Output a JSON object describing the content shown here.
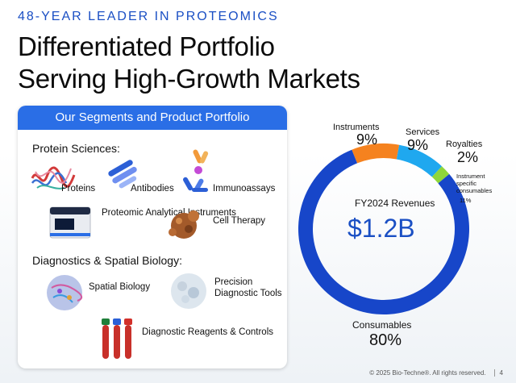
{
  "header": {
    "eyebrow": "48-YEAR LEADER IN PROTEOMICS",
    "title_line1": "Differentiated Portfolio",
    "title_line2": "Serving High-Growth Markets"
  },
  "panel": {
    "heading": "Our Segments and Product Portfolio",
    "protein_sciences": {
      "label": "Protein Sciences:",
      "items": [
        "Proteins",
        "Antibodies",
        "Immunoassays",
        "Proteomic Analytical Instruments",
        "Cell Therapy"
      ]
    },
    "diagnostics": {
      "label": "Diagnostics & Spatial Biology:",
      "items": [
        "Spatial Biology",
        "Precision Diagnostic Tools",
        "Diagnostic Reagents & Controls"
      ]
    }
  },
  "chart_data": {
    "type": "pie",
    "title": "FY2024 Revenues",
    "total": "$1.2B",
    "slices": [
      {
        "name": "Instruments",
        "value": 9,
        "label": "9%",
        "color": "#f5821f"
      },
      {
        "name": "Services",
        "value": 9,
        "label": "9%",
        "color": "#1fa8ef"
      },
      {
        "name": "Royalties",
        "value": 2,
        "label": "2%",
        "color": "#8fd63a"
      },
      {
        "name": "Consumables",
        "value": 80,
        "label": "80%",
        "color": "#1746c9"
      }
    ],
    "annotation": {
      "text_line1": "Instrument",
      "text_line2": "specific",
      "text_line3": "consumables",
      "value": "11%"
    }
  },
  "footer": {
    "copyright": "© 2025 Bio-Techne®. All rights reserved.",
    "page": "4"
  }
}
